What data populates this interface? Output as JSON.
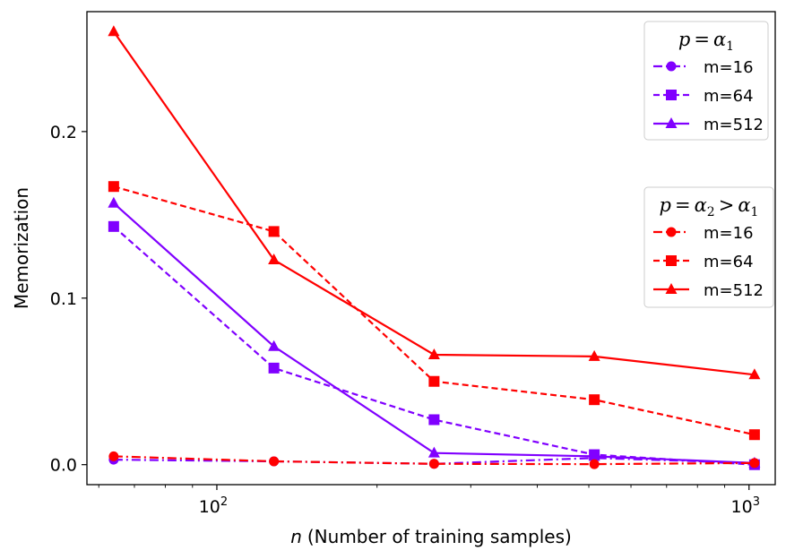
{
  "chart_data": {
    "type": "line",
    "title": "",
    "xlabel": "(Number of training samples)",
    "xlabel_var": "n",
    "ylabel": "Memorization",
    "xscale": "log",
    "xlim": [
      57,
      1120
    ],
    "ylim": [
      -0.012,
      0.272
    ],
    "x_major_ticks": [
      100,
      1000
    ],
    "x_major_tick_labels": [
      {
        "base": "10",
        "exp": "2"
      },
      {
        "base": "10",
        "exp": "3"
      }
    ],
    "y_ticks": [
      0.0,
      0.1,
      0.2
    ],
    "y_tick_labels": [
      "0.0",
      "0.1",
      "0.2"
    ],
    "grid": false,
    "x": [
      64,
      128,
      256,
      512,
      1024
    ],
    "colors": {
      "alpha1": "#8000ff",
      "alpha2": "#ff0000"
    },
    "legend_groups": [
      {
        "title": "p = α1",
        "title_parts": {
          "var": "p",
          "rel": "=",
          "a": "α",
          "a_sub": "1"
        },
        "placement": "top-right",
        "color": "#8000ff",
        "series": [
          {
            "name": "m=16",
            "marker": "circle",
            "linestyle": "dashdot",
            "values": [
              0.003,
              0.002,
              0.0005,
              0.004,
              0.001
            ]
          },
          {
            "name": "m=64",
            "marker": "square",
            "linestyle": "dashed",
            "values": [
              0.143,
              0.058,
              0.027,
              0.006,
              0.0
            ]
          },
          {
            "name": "m=512",
            "marker": "triangle",
            "linestyle": "solid",
            "values": [
              0.157,
              0.071,
              0.007,
              0.005,
              0.001
            ]
          }
        ]
      },
      {
        "title": "p = α2 > α1",
        "title_parts": {
          "var": "p",
          "rel": "=",
          "a": "α",
          "a_sub": "2",
          "rel2": ">",
          "b": "α",
          "b_sub": "1"
        },
        "placement": "right",
        "color": "#ff0000",
        "series": [
          {
            "name": "m=16",
            "marker": "circle",
            "linestyle": "dashdot",
            "values": [
              0.005,
              0.002,
              0.0005,
              0.0003,
              0.001
            ]
          },
          {
            "name": "m=64",
            "marker": "square",
            "linestyle": "dashed",
            "values": [
              0.167,
              0.14,
              0.05,
              0.039,
              0.018
            ]
          },
          {
            "name": "m=512",
            "marker": "triangle",
            "linestyle": "solid",
            "values": [
              0.26,
              0.123,
              0.066,
              0.065,
              0.054
            ]
          }
        ]
      }
    ]
  }
}
